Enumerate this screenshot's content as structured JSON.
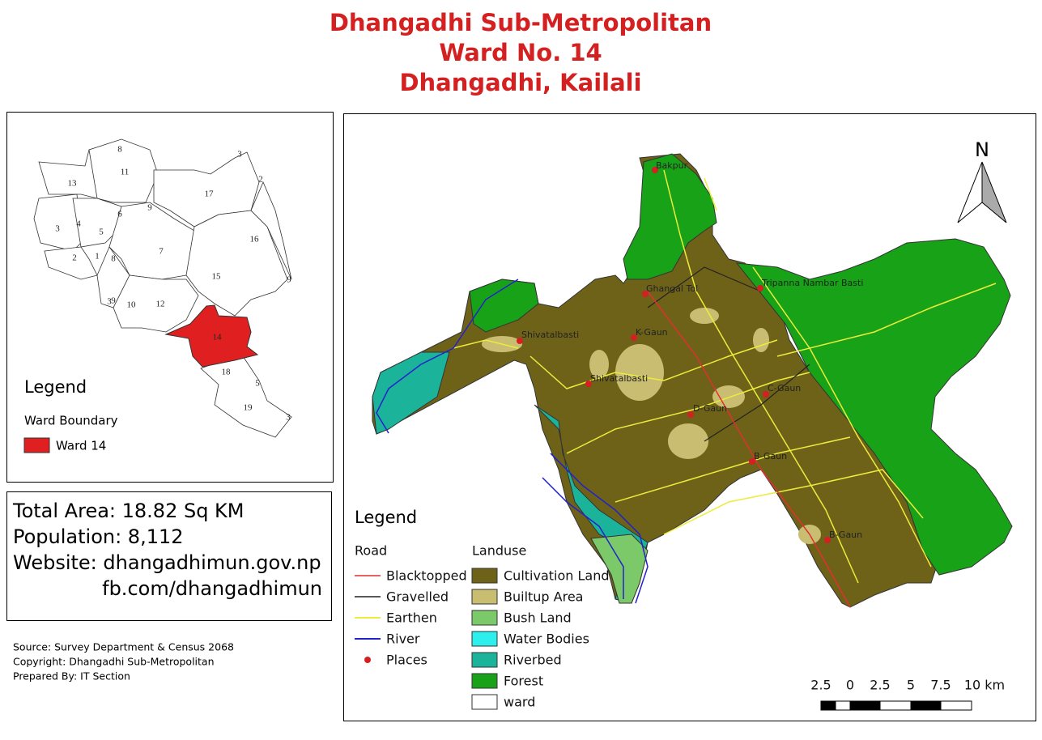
{
  "title": [
    "Dhangadhi Sub-Metropolitan",
    "Ward No. 14",
    "Dhangadhi, Kailali"
  ],
  "inset_map": {
    "ward_labels": [
      "13",
      "11",
      "17",
      "3",
      "4",
      "6",
      "5",
      "16",
      "7",
      "2",
      "1",
      "8",
      "15",
      "10",
      "12",
      "9",
      "14",
      "18",
      "19"
    ],
    "edge_labels": [
      "8",
      "3",
      "2",
      "9",
      "9",
      "3",
      "5",
      "3"
    ],
    "legend": {
      "title": "Legend",
      "subtitle": "Ward Boundary",
      "item": "Ward 14"
    }
  },
  "info": [
    "Total Area: 18.82 Sq KM",
    "Population: 8,112",
    "Website: dhangadhimun.gov.np",
    "fb.com/dhangadhimun"
  ],
  "source": [
    "Source: Survey Department & Census 2068",
    "Copyright: Dhangadhi Sub-Metropolitan",
    "Prepared By: IT Section"
  ],
  "main_map": {
    "north": "N",
    "places": [
      "Bakpur",
      "Ghangal Tol",
      "Tripanna Nambar Basti",
      "Shivatalbasti",
      "K-Gaun",
      "Shivatalbasti",
      "C-Gaun",
      "D-Gaun",
      "B-Gaun",
      "B-Gaun"
    ],
    "legend": {
      "title": "Legend",
      "road_title": "Road",
      "landuse_title": "Landuse",
      "roads": [
        "Blacktopped",
        "Gravelled",
        "Earthen",
        "River",
        "Places"
      ],
      "landuse": [
        "Cultivation Land",
        "Builtup Area",
        "Bush Land",
        "Water Bodies",
        "Riverbed",
        "Forest",
        "ward"
      ]
    },
    "scale": [
      "2.5",
      "0",
      "2.5",
      "5",
      "7.5",
      "10 km"
    ]
  }
}
